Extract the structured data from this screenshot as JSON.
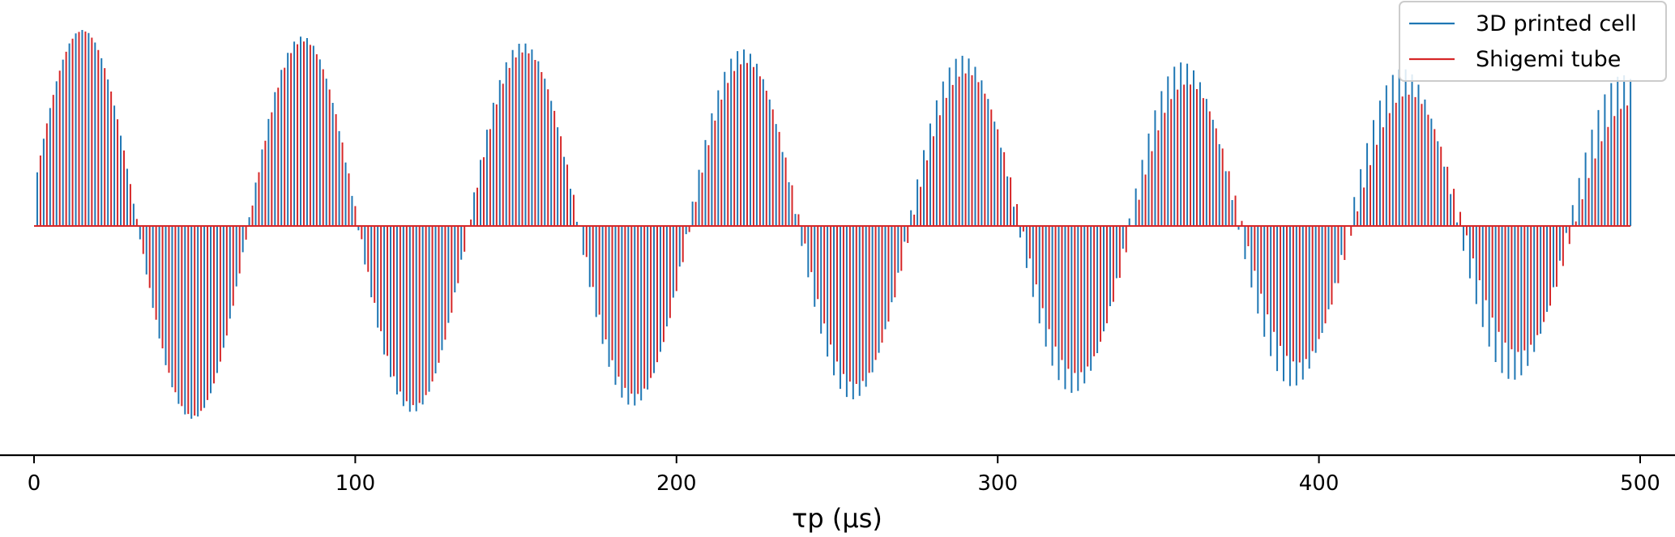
{
  "chart_data": {
    "type": "line",
    "title": "",
    "xlabel": "τp (µs)",
    "ylabel": "",
    "xlim": [
      -10,
      510
    ],
    "ylim": [
      -1.0,
      1.0
    ],
    "x_ticks": [
      0,
      100,
      200,
      300,
      400,
      500
    ],
    "x_tick_labels": [
      "0",
      "100",
      "200",
      "300",
      "400",
      "500"
    ],
    "y_axis_visible": false,
    "grid": false,
    "legend_position": "top-right",
    "description_note": "",
    "series": [
      {
        "name": "3D printed cell",
        "color": "#1f77b4",
        "peak_spacing_us": 2.0,
        "oscillation_period_us": 68.5,
        "envelope": [
          [
            0,
            0.92
          ],
          [
            500,
            0.7
          ]
        ],
        "x_offset_us": 0
      },
      {
        "name": "Shigemi tube",
        "color": "#d62728",
        "peak_spacing_us": 2.0,
        "oscillation_period_us": 68.8,
        "envelope": [
          [
            0,
            0.92
          ],
          [
            500,
            0.56
          ]
        ],
        "x_offset_us": 1.0
      }
    ]
  }
}
